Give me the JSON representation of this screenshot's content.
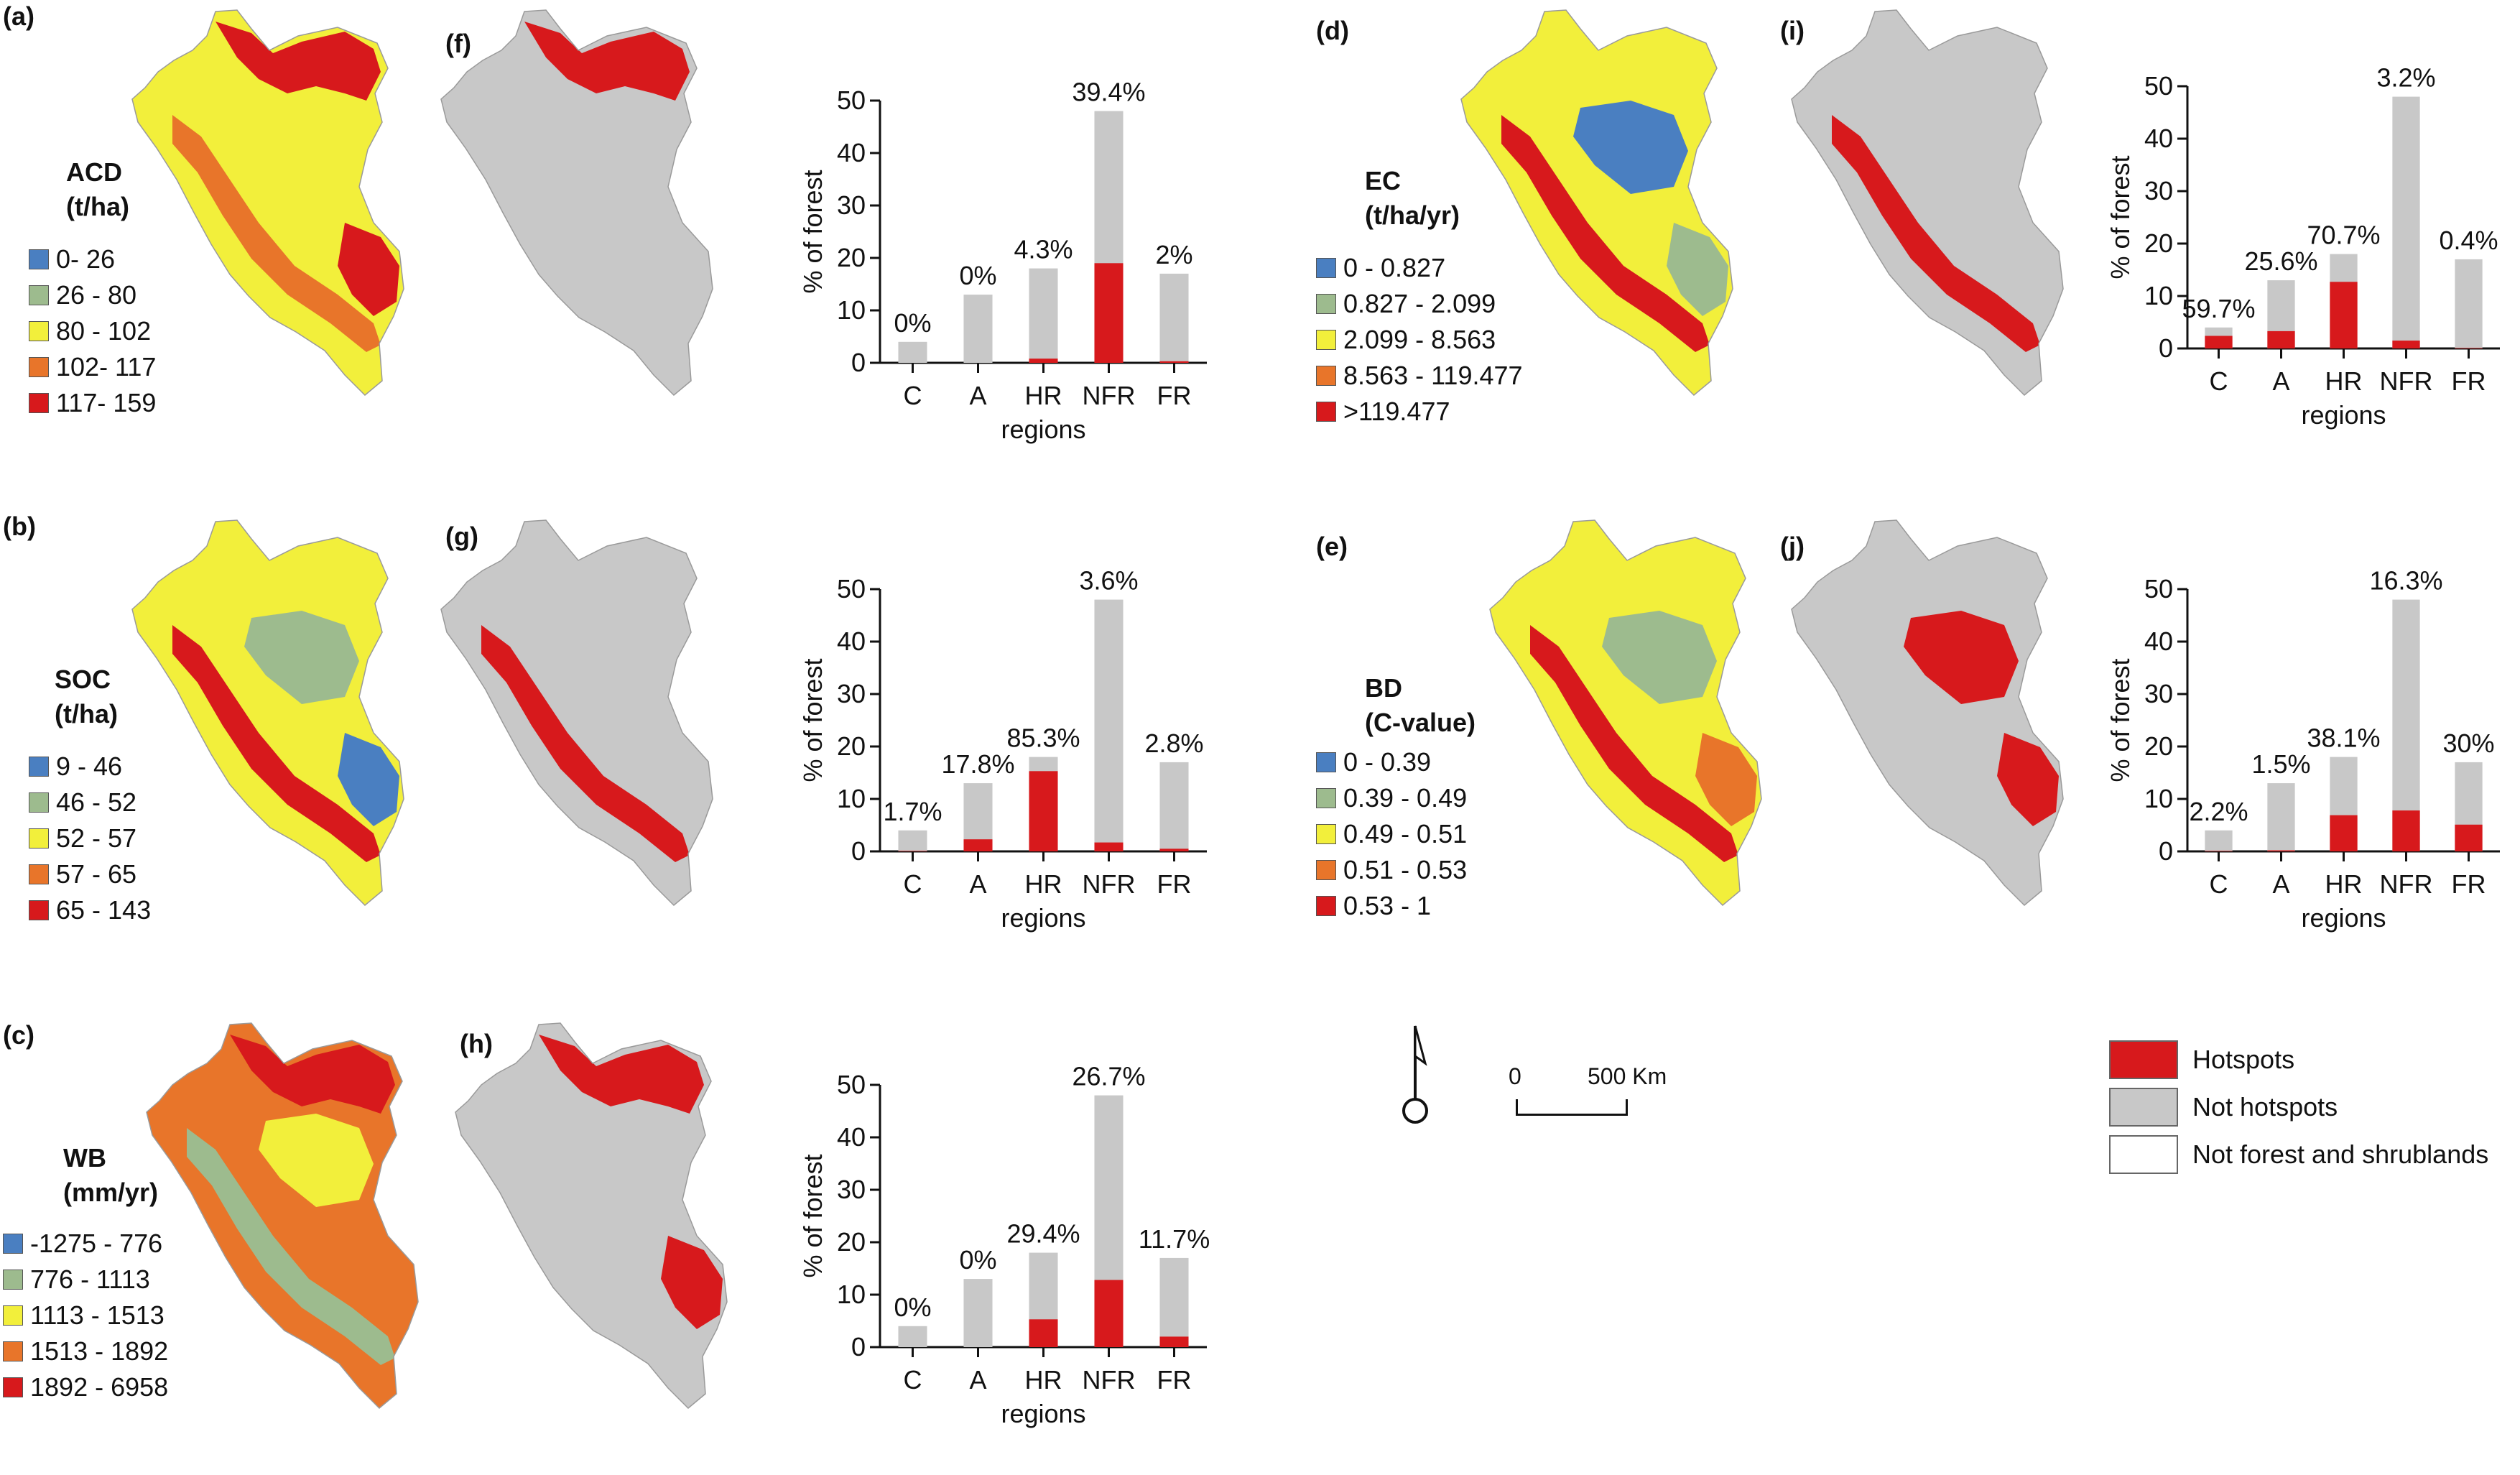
{
  "panel_letters": {
    "a": "(a)",
    "b": "(b)",
    "c": "(c)",
    "d": "(d)",
    "e": "(e)",
    "f": "(f)",
    "g": "(g)",
    "h": "(h)",
    "i": "(i)",
    "j": "(j)"
  },
  "legends": {
    "acd": {
      "title1": "ACD",
      "title2": "(t/ha)",
      "items": [
        {
          "label": "0- 26",
          "color": "#4a7fc1"
        },
        {
          "label": "26 - 80",
          "color": "#9dbb8e"
        },
        {
          "label": "80 - 102",
          "color": "#f2ef3b"
        },
        {
          "label": "102- 117",
          "color": "#e8752a"
        },
        {
          "label": "117- 159",
          "color": "#d7191c"
        }
      ]
    },
    "soc": {
      "title1": "SOC",
      "title2": "(t/ha)",
      "items": [
        {
          "label": "9 - 46",
          "color": "#4a7fc1"
        },
        {
          "label": "46 - 52",
          "color": "#9dbb8e"
        },
        {
          "label": "52 - 57",
          "color": "#f2ef3b"
        },
        {
          "label": "57 - 65",
          "color": "#e8752a"
        },
        {
          "label": "65 - 143",
          "color": "#d7191c"
        }
      ]
    },
    "wb": {
      "title1": "WB",
      "title2": "(mm/yr)",
      "items": [
        {
          "label": "-1275 - 776",
          "color": "#4a7fc1"
        },
        {
          "label": "776 - 1113",
          "color": "#9dbb8e"
        },
        {
          "label": "1113 - 1513",
          "color": "#f2ef3b"
        },
        {
          "label": "1513 - 1892",
          "color": "#e8752a"
        },
        {
          "label": "1892 - 6958",
          "color": "#d7191c"
        }
      ]
    },
    "ec": {
      "title1": "EC",
      "title2": "(t/ha/yr)",
      "items": [
        {
          "label": "0 - 0.827",
          "color": "#4a7fc1"
        },
        {
          "label": "0.827 - 2.099",
          "color": "#9dbb8e"
        },
        {
          "label": "2.099 - 8.563",
          "color": "#f2ef3b"
        },
        {
          "label": "8.563 - 119.477",
          "color": "#e8752a"
        },
        {
          "label": ">119.477",
          "color": "#d7191c"
        }
      ]
    },
    "bd": {
      "title1": "BD",
      "title2": "(C-value)",
      "items": [
        {
          "label": "0 - 0.39",
          "color": "#4a7fc1"
        },
        {
          "label": "0.39 - 0.49",
          "color": "#9dbb8e"
        },
        {
          "label": "0.49 - 0.51",
          "color": "#f2ef3b"
        },
        {
          "label": "0.51 - 0.53",
          "color": "#e8752a"
        },
        {
          "label": "0.53 - 1",
          "color": "#d7191c"
        }
      ]
    }
  },
  "maps": [
    {
      "id": "a",
      "kind": "classified",
      "dominant": "#d7191c"
    },
    {
      "id": "b",
      "kind": "classified",
      "dominant": "#f2ef3b"
    },
    {
      "id": "c",
      "kind": "classified",
      "dominant": "#e8752a"
    },
    {
      "id": "d",
      "kind": "classified",
      "dominant": "#f2ef3b"
    },
    {
      "id": "e",
      "kind": "classified",
      "dominant": "#d7191c"
    },
    {
      "id": "f",
      "kind": "hotspot"
    },
    {
      "id": "g",
      "kind": "hotspot"
    },
    {
      "id": "h",
      "kind": "hotspot"
    },
    {
      "id": "i",
      "kind": "hotspot"
    },
    {
      "id": "j",
      "kind": "hotspot"
    }
  ],
  "chart_data": [
    {
      "type": "bar",
      "panel": "f",
      "categories": [
        "C",
        "A",
        "HR",
        "NFR",
        "FR"
      ],
      "series": [
        {
          "name": "Not hotspots",
          "values": [
            4,
            13,
            18,
            48,
            17
          ]
        },
        {
          "name": "Hotspots",
          "values": [
            0,
            0,
            0.8,
            19,
            0.3
          ]
        }
      ],
      "annotations": [
        "0%",
        "0%",
        "4.3%",
        "39.4%",
        "2%"
      ],
      "xlabel": "regions",
      "ylabel": "% of forest",
      "ylim": [
        0,
        50
      ],
      "yticks": [
        0,
        10,
        20,
        30,
        40,
        50
      ]
    },
    {
      "type": "bar",
      "panel": "g",
      "categories": [
        "C",
        "A",
        "HR",
        "NFR",
        "FR"
      ],
      "series": [
        {
          "name": "Not hotspots",
          "values": [
            4,
            13,
            18,
            48,
            17
          ]
        },
        {
          "name": "Hotspots",
          "values": [
            0.1,
            2.3,
            15.3,
            1.7,
            0.5
          ]
        }
      ],
      "annotations": [
        "1.7%",
        "17.8%",
        "85.3%",
        "3.6%",
        "2.8%"
      ],
      "xlabel": "regions",
      "ylabel": "% of forest",
      "ylim": [
        0,
        50
      ],
      "yticks": [
        0,
        10,
        20,
        30,
        40,
        50
      ]
    },
    {
      "type": "bar",
      "panel": "h",
      "categories": [
        "C",
        "A",
        "HR",
        "NFR",
        "FR"
      ],
      "series": [
        {
          "name": "Not hotspots",
          "values": [
            4,
            13,
            18,
            48,
            17
          ]
        },
        {
          "name": "Hotspots",
          "values": [
            0,
            0,
            5.3,
            12.8,
            2
          ]
        }
      ],
      "annotations": [
        "0%",
        "0%",
        "29.4%",
        "26.7%",
        "11.7%"
      ],
      "xlabel": "regions",
      "ylabel": "% of forest",
      "ylim": [
        0,
        50
      ],
      "yticks": [
        0,
        10,
        20,
        30,
        40,
        50
      ]
    },
    {
      "type": "bar",
      "panel": "i",
      "categories": [
        "C",
        "A",
        "HR",
        "NFR",
        "FR"
      ],
      "series": [
        {
          "name": "Not hotspots",
          "values": [
            4,
            13,
            18,
            48,
            17
          ]
        },
        {
          "name": "Hotspots",
          "values": [
            2.4,
            3.3,
            12.7,
            1.5,
            0.1
          ]
        }
      ],
      "annotations": [
        "59.7%",
        "25.6%",
        "70.7%",
        "3.2%",
        "0.4%"
      ],
      "xlabel": "regions",
      "ylabel": "% of forest",
      "ylim": [
        0,
        50
      ],
      "yticks": [
        0,
        10,
        20,
        30,
        40,
        50
      ]
    },
    {
      "type": "bar",
      "panel": "j",
      "categories": [
        "C",
        "A",
        "HR",
        "NFR",
        "FR"
      ],
      "series": [
        {
          "name": "Not hotspots",
          "values": [
            4,
            13,
            18,
            48,
            17
          ]
        },
        {
          "name": "Hotspots",
          "values": [
            0.1,
            0.2,
            6.9,
            7.8,
            5.1
          ]
        }
      ],
      "annotations": [
        "2.2%",
        "1.5%",
        "38.1%",
        "16.3%",
        "30%"
      ],
      "xlabel": "regions",
      "ylabel": "% of forest",
      "ylim": [
        0,
        50
      ],
      "yticks": [
        0,
        10,
        20,
        30,
        40,
        50
      ]
    }
  ],
  "scale_bar": {
    "zero": "0",
    "label": "500 Km"
  },
  "key": [
    {
      "label": "Hotspots",
      "color": "#d7191c"
    },
    {
      "label": "Not hotspots",
      "color": "#c8c8c8"
    },
    {
      "label": "Not forest and shrublands",
      "color": "#ffffff"
    }
  ]
}
